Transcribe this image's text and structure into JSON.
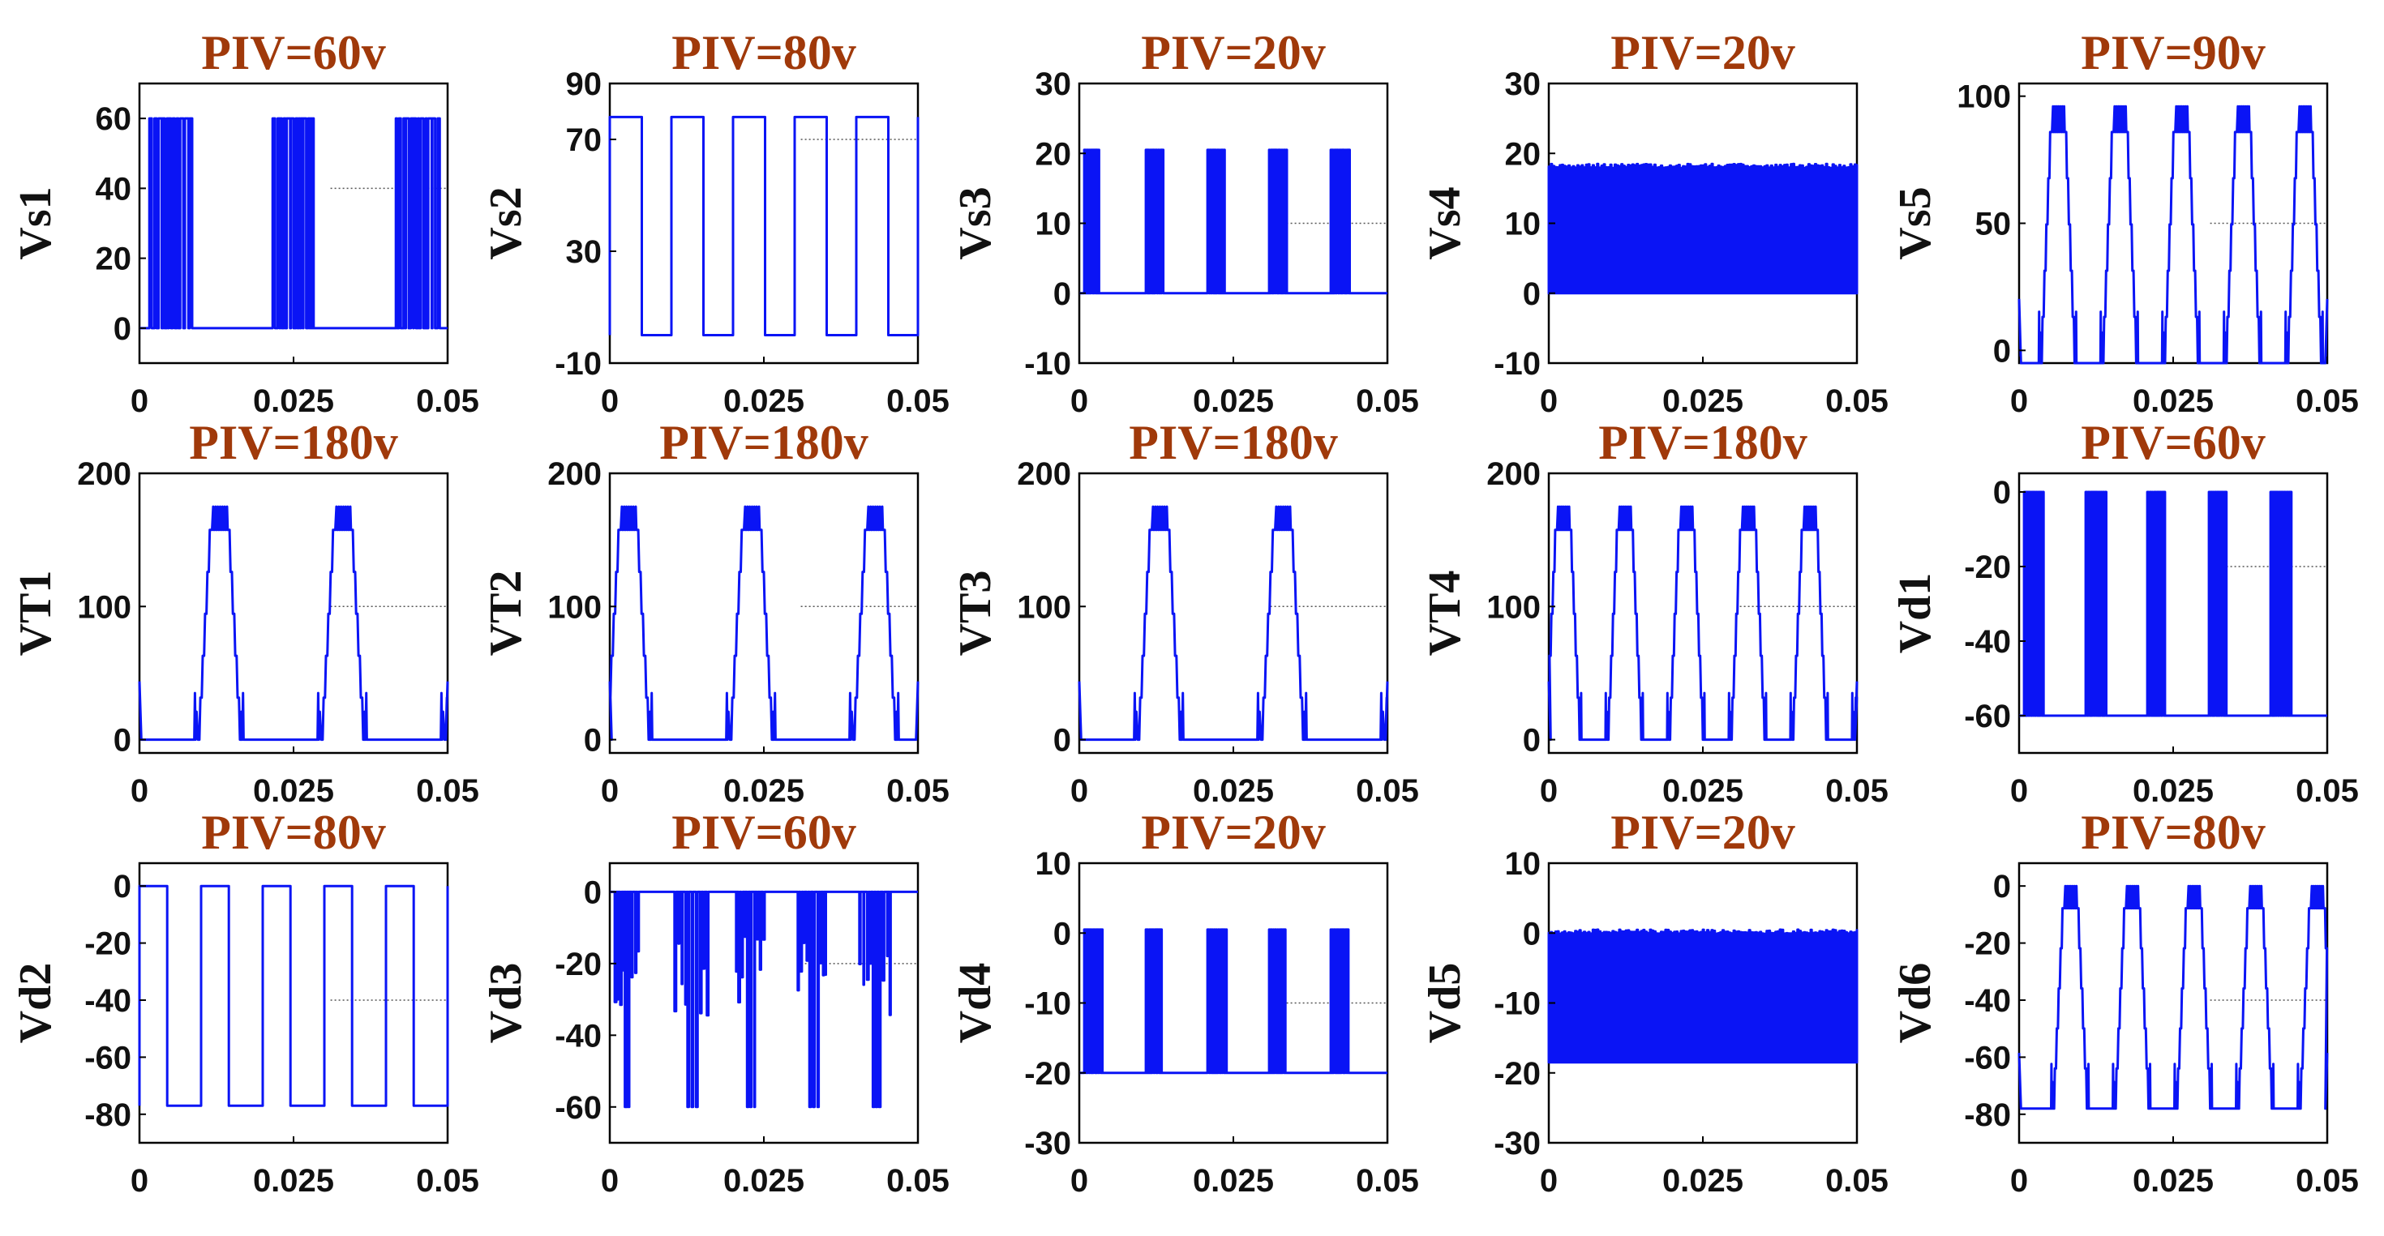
{
  "colors": {
    "trace": "#0a14f5",
    "title": "#a0390a"
  },
  "chart_data": [
    {
      "type": "line",
      "title": "PIV=60v",
      "ylabel": "Vs1",
      "xlim": [
        0,
        0.05
      ],
      "ylim": [
        -10,
        70
      ],
      "xticks": [
        "0",
        "0.025",
        "0.05"
      ],
      "yticks": [
        0,
        20,
        40,
        60
      ],
      "pattern": "pulse",
      "low": 0,
      "high": 60,
      "period": 0.02,
      "count": 20,
      "crossings": [
        0.025
      ]
    },
    {
      "type": "line",
      "title": "PIV=80v",
      "ylabel": "Vs2",
      "xlim": [
        0,
        0.05
      ],
      "ylim": [
        -10,
        90
      ],
      "xticks": [
        "0",
        "0.025",
        "0.05"
      ],
      "yticks": [
        -10,
        30,
        70,
        90
      ],
      "pattern": "square",
      "low": 0,
      "high": 78,
      "period": 0.01,
      "duty": 0.52
    },
    {
      "type": "line",
      "title": "PIV=20v",
      "ylabel": "Vs3",
      "xlim": [
        0,
        0.05
      ],
      "ylim": [
        -10,
        30
      ],
      "xticks": [
        "0",
        "0.025",
        "0.05"
      ],
      "yticks": [
        -10,
        0,
        10,
        20,
        30
      ],
      "pattern": "pulse",
      "low": 0,
      "high": 20.5,
      "period": 0.01,
      "count": 10,
      "crossings": []
    },
    {
      "type": "line",
      "title": "PIV=20v",
      "ylabel": "Vs4",
      "xlim": [
        0,
        0.05
      ],
      "ylim": [
        -10,
        30
      ],
      "xticks": [
        "0",
        "0.025",
        "0.05"
      ],
      "yticks": [
        -10,
        0,
        10,
        20,
        30
      ],
      "pattern": "dense",
      "low": 0,
      "high": 18.5,
      "count": 70,
      "crossings": [
        0.025
      ]
    },
    {
      "type": "line",
      "title": "PIV=90v",
      "ylabel": "Vs5",
      "xlim": [
        0,
        0.05
      ],
      "ylim": [
        -5,
        105
      ],
      "xticks": [
        "0",
        "0.025",
        "0.05"
      ],
      "yticks": [
        0,
        50,
        100
      ],
      "pattern": "trapezoid",
      "low": -5,
      "high": 96,
      "period": 0.01,
      "phase": 0.0035
    },
    {
      "type": "line",
      "title": "PIV=180v",
      "ylabel": "VT1",
      "xlim": [
        0,
        0.05
      ],
      "ylim": [
        -10,
        200
      ],
      "xticks": [
        "0",
        "0.025",
        "0.05"
      ],
      "yticks": [
        0,
        100,
        200
      ],
      "pattern": "trapezoid",
      "low": 0,
      "high": 175,
      "period": 0.02,
      "phase": 0.0095
    },
    {
      "type": "line",
      "title": "PIV=180v",
      "ylabel": "VT2",
      "xlim": [
        0,
        0.05
      ],
      "ylim": [
        -10,
        200
      ],
      "xticks": [
        "0",
        "0.025",
        "0.05"
      ],
      "yticks": [
        0,
        100,
        200
      ],
      "pattern": "trapezoid",
      "low": 0,
      "high": 175,
      "period": 0.02,
      "phase": -0.0005
    },
    {
      "type": "line",
      "title": "PIV=180v",
      "ylabel": "VT3",
      "xlim": [
        0,
        0.05
      ],
      "ylim": [
        -10,
        200
      ],
      "xticks": [
        "0",
        "0.025",
        "0.05"
      ],
      "yticks": [
        0,
        100,
        200
      ],
      "pattern": "trapezoid",
      "low": 0,
      "high": 175,
      "period": 0.02,
      "phase": 0.0095
    },
    {
      "type": "line",
      "title": "PIV=180v",
      "ylabel": "VT4",
      "xlim": [
        0,
        0.05
      ],
      "ylim": [
        -10,
        200
      ],
      "xticks": [
        "0",
        "0.025",
        "0.05"
      ],
      "yticks": [
        0,
        100,
        200
      ],
      "pattern": "trapezoid",
      "low": 0,
      "high": 175,
      "period": 0.01,
      "phase": -0.0005
    },
    {
      "type": "line",
      "title": "PIV=60v",
      "ylabel": "Vd1",
      "xlim": [
        0,
        0.05
      ],
      "ylim": [
        -70,
        5
      ],
      "xticks": [
        "0",
        "0.025",
        "0.05"
      ],
      "yticks": [
        -60,
        -40,
        -20,
        0
      ],
      "pattern": "pulse",
      "low": -60,
      "high": 0,
      "period": 0.01,
      "count": 10,
      "crossings": []
    },
    {
      "type": "line",
      "title": "PIV=80v",
      "ylabel": "Vd2",
      "xlim": [
        0,
        0.05
      ],
      "ylim": [
        -90,
        8
      ],
      "xticks": [
        "0",
        "0.025",
        "0.05"
      ],
      "yticks": [
        -80,
        -60,
        -40,
        -20,
        0
      ],
      "pattern": "square",
      "low": -77,
      "high": 0,
      "period": 0.01,
      "duty": 0.45
    },
    {
      "type": "line",
      "title": "PIV=60v",
      "ylabel": "Vd3",
      "xlim": [
        0,
        0.05
      ],
      "ylim": [
        -70,
        8
      ],
      "xticks": [
        "0",
        "0.025",
        "0.05"
      ],
      "yticks": [
        -60,
        -40,
        -20,
        0
      ],
      "pattern": "dips",
      "low": -60,
      "high": 0,
      "period": 0.01,
      "count": 10
    },
    {
      "type": "line",
      "title": "PIV=20v",
      "ylabel": "Vd4",
      "xlim": [
        0,
        0.05
      ],
      "ylim": [
        -30,
        10
      ],
      "xticks": [
        "0",
        "0.025",
        "0.05"
      ],
      "yticks": [
        -30,
        -20,
        -10,
        0,
        10
      ],
      "pattern": "pulse",
      "low": -20,
      "high": 0.5,
      "period": 0.01,
      "count": 10,
      "crossings": []
    },
    {
      "type": "line",
      "title": "PIV=20v",
      "ylabel": "Vd5",
      "xlim": [
        0,
        0.05
      ],
      "ylim": [
        -30,
        10
      ],
      "xticks": [
        "0",
        "0.025",
        "0.05"
      ],
      "yticks": [
        -30,
        -20,
        -10,
        0,
        10
      ],
      "pattern": "dense",
      "low": -18.5,
      "high": 0.5,
      "count": 70,
      "crossings": [
        0.025
      ]
    },
    {
      "type": "line",
      "title": "PIV=80v",
      "ylabel": "Vd6",
      "xlim": [
        0,
        0.05
      ],
      "ylim": [
        -90,
        8
      ],
      "xticks": [
        "0",
        "0.025",
        "0.05"
      ],
      "yticks": [
        -80,
        -60,
        -40,
        -20,
        0
      ],
      "pattern": "trapezoid",
      "low": -78,
      "high": 0,
      "period": 0.01,
      "phase": 0.0055
    }
  ]
}
